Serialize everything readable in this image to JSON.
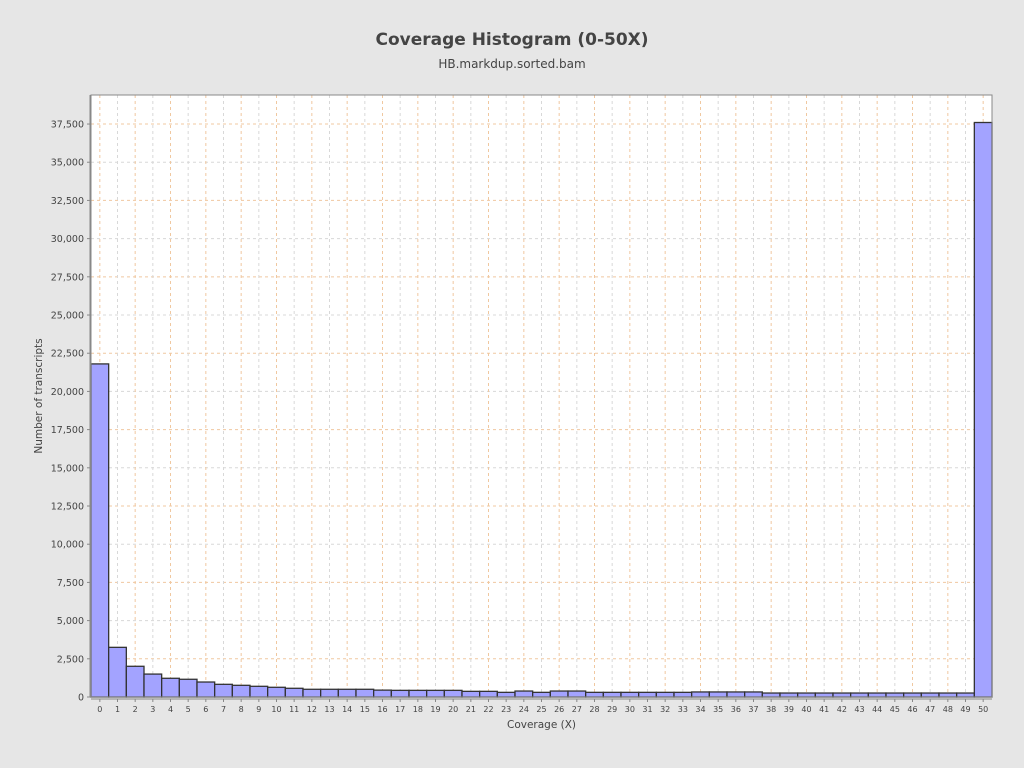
{
  "chart_data": {
    "type": "bar",
    "title": "Coverage Histogram (0-50X)",
    "subtitle": "HB.markdup.sorted.bam",
    "xlabel": "Coverage (X)",
    "ylabel": "Number of transcripts",
    "ylim": [
      0,
      39400
    ],
    "yticks": [
      0,
      2500,
      5000,
      7500,
      10000,
      12500,
      15000,
      17500,
      20000,
      22500,
      25000,
      27500,
      30000,
      32500,
      35000,
      37500
    ],
    "grid": true,
    "bar_color": "#a3a3ff",
    "categories": [
      "0",
      "1",
      "2",
      "3",
      "4",
      "5",
      "6",
      "7",
      "8",
      "9",
      "10",
      "11",
      "12",
      "13",
      "14",
      "15",
      "16",
      "17",
      "18",
      "19",
      "20",
      "21",
      "22",
      "23",
      "24",
      "25",
      "26",
      "27",
      "28",
      "29",
      "30",
      "31",
      "32",
      "33",
      "34",
      "35",
      "36",
      "37",
      "38",
      "39",
      "40",
      "41",
      "42",
      "43",
      "44",
      "45",
      "46",
      "47",
      "48",
      "49",
      "50"
    ],
    "values": [
      21800,
      3250,
      2010,
      1500,
      1225,
      1160,
      980,
      830,
      765,
      700,
      635,
      570,
      505,
      505,
      505,
      505,
      450,
      435,
      435,
      435,
      435,
      370,
      370,
      305,
      390,
      305,
      390,
      390,
      305,
      305,
      305,
      305,
      305,
      305,
      330,
      330,
      330,
      330,
      260,
      260,
      260,
      260,
      260,
      260,
      260,
      260,
      260,
      260,
      260,
      260,
      37600
    ]
  }
}
